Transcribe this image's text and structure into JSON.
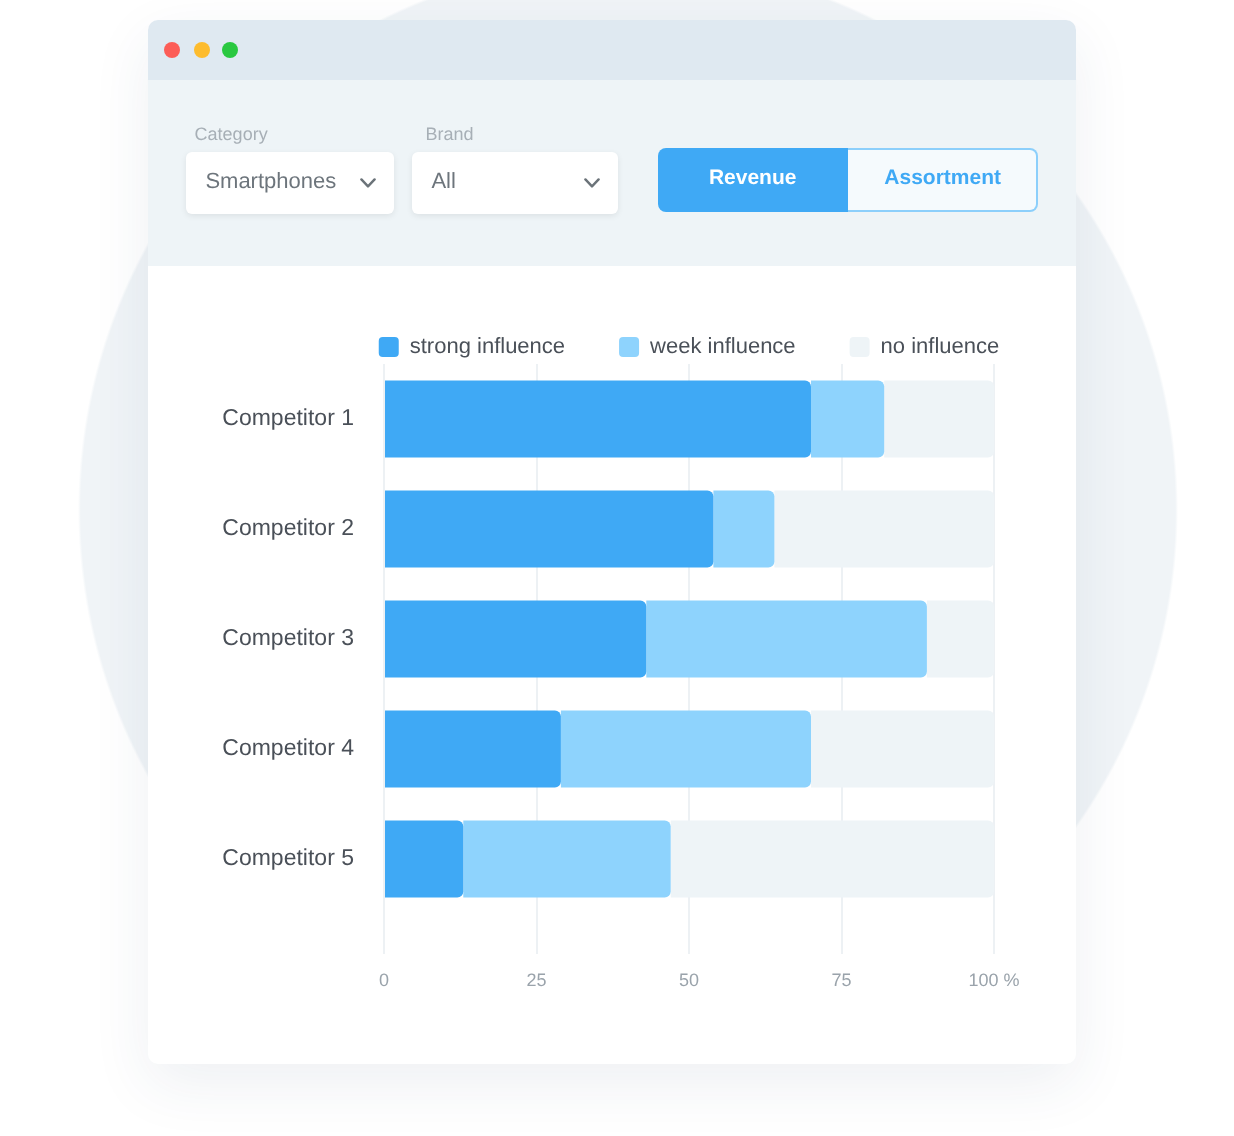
{
  "chart_data": {
    "type": "bar",
    "orientation": "horizontal",
    "stacked": true,
    "categories": [
      "Competitor 1",
      "Competitor 2",
      "Competitor 3",
      "Competitor 4",
      "Competitor 5"
    ],
    "series": [
      {
        "name": "strong influence",
        "color": "#3fa9f5",
        "values": [
          70,
          54,
          43,
          29,
          13
        ]
      },
      {
        "name": "week influence",
        "color": "#8ed3fd",
        "values": [
          12,
          10,
          46,
          41,
          34
        ]
      },
      {
        "name": "no influence",
        "color": "#eef4f7",
        "values": [
          18,
          36,
          11,
          30,
          53
        ]
      }
    ],
    "xlim": [
      0,
      100
    ],
    "xticks": [
      0,
      25,
      50,
      75,
      {
        "value": 100,
        "label": "100 %"
      }
    ],
    "grid": "x",
    "legend": "top",
    "annotations": [
      "Category",
      "Smartphones",
      "Brand",
      "All",
      "Revenue",
      "Assortment"
    ]
  }
}
